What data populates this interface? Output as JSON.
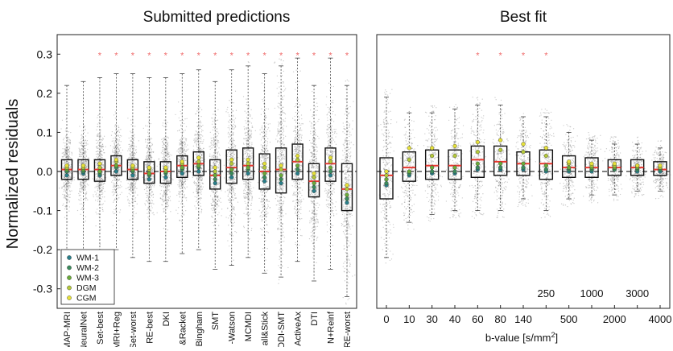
{
  "colors": {
    "median": "#e8372f",
    "outlier_star": "#f06a6a",
    "points": "#6b6b6b",
    "box": "#111111",
    "zero_line": "#333333",
    "markers": {
      "WM-1": "#2a7f8a",
      "WM-2": "#3b8b5c",
      "WM-3": "#6aaa3a",
      "DGM": "#b4c83a",
      "CGM": "#e5e03a"
    }
  },
  "chart_data": [
    {
      "type": "box",
      "title": "Submitted predictions",
      "ylabel": "Normalized residuals",
      "ylim": [
        -0.35,
        0.35
      ],
      "yticks": [
        -0.3,
        -0.2,
        -0.1,
        0.0,
        0.1,
        0.2,
        0.3
      ],
      "yticklabels": [
        "-0.3",
        "-0.2",
        "-0.1",
        "0.0",
        "0.1",
        "0.2",
        "0.3"
      ],
      "zero_line": "dashed",
      "categories": [
        "MAP-MRI",
        "NeuralNet",
        "Set-best",
        "MRI+Reg",
        "Set-worst",
        "RE-best",
        "DKI",
        "&Racket",
        "Bingham",
        "SMT",
        "-Watson",
        "MCMDI",
        "all&Stick",
        "DDI-SMT",
        "ActiveAx",
        "DTI",
        "N+Reinf",
        "RE-worst"
      ],
      "boxes": [
        {
          "q1": -0.02,
          "median": 0.005,
          "q3": 0.03,
          "whisker_low": -0.2,
          "whisker_high": 0.22
        },
        {
          "q1": -0.02,
          "median": 0.005,
          "q3": 0.03,
          "whisker_low": -0.21,
          "whisker_high": 0.23
        },
        {
          "q1": -0.025,
          "median": 0.005,
          "q3": 0.03,
          "whisker_low": -0.22,
          "whisker_high": 0.24
        },
        {
          "q1": -0.01,
          "median": 0.015,
          "q3": 0.04,
          "whisker_low": -0.2,
          "whisker_high": 0.25
        },
        {
          "q1": -0.02,
          "median": 0.005,
          "q3": 0.03,
          "whisker_low": -0.22,
          "whisker_high": 0.25
        },
        {
          "q1": -0.03,
          "median": -0.005,
          "q3": 0.025,
          "whisker_low": -0.23,
          "whisker_high": 0.24
        },
        {
          "q1": -0.03,
          "median": 0.0,
          "q3": 0.025,
          "whisker_low": -0.23,
          "whisker_high": 0.24
        },
        {
          "q1": -0.015,
          "median": 0.015,
          "q3": 0.04,
          "whisker_low": -0.21,
          "whisker_high": 0.25
        },
        {
          "q1": -0.01,
          "median": 0.02,
          "q3": 0.05,
          "whisker_low": -0.2,
          "whisker_high": 0.26
        },
        {
          "q1": -0.045,
          "median": -0.01,
          "q3": 0.03,
          "whisker_low": -0.25,
          "whisker_high": 0.23
        },
        {
          "q1": -0.03,
          "median": 0.01,
          "q3": 0.055,
          "whisker_low": -0.24,
          "whisker_high": 0.26
        },
        {
          "q1": -0.02,
          "median": 0.015,
          "q3": 0.06,
          "whisker_low": -0.22,
          "whisker_high": 0.27
        },
        {
          "q1": -0.045,
          "median": 0.0,
          "q3": 0.045,
          "whisker_low": -0.26,
          "whisker_high": 0.25
        },
        {
          "q1": -0.055,
          "median": 0.005,
          "q3": 0.06,
          "whisker_low": -0.27,
          "whisker_high": 0.27
        },
        {
          "q1": -0.02,
          "median": 0.025,
          "q3": 0.07,
          "whisker_low": -0.23,
          "whisker_high": 0.29
        },
        {
          "q1": -0.065,
          "median": -0.025,
          "q3": 0.02,
          "whisker_low": -0.28,
          "whisker_high": 0.22
        },
        {
          "q1": -0.025,
          "median": 0.02,
          "q3": 0.06,
          "whisker_low": -0.25,
          "whisker_high": 0.29
        },
        {
          "q1": -0.1,
          "median": -0.045,
          "q3": 0.02,
          "whisker_low": -0.32,
          "whisker_high": 0.22
        }
      ],
      "outlier_stars": [
        2,
        3,
        4,
        5,
        6,
        7,
        8,
        9,
        10,
        11,
        12,
        13,
        14,
        15,
        16,
        17
      ],
      "outlier_star_value": 0.3,
      "tissue_means": {
        "WM-1": [
          -0.01,
          -0.005,
          -0.01,
          0.0,
          -0.01,
          -0.02,
          -0.015,
          -0.005,
          0.0,
          -0.03,
          -0.015,
          -0.005,
          -0.025,
          -0.03,
          -0.005,
          -0.05,
          -0.01,
          -0.08
        ],
        "WM-2": [
          0.0,
          0.0,
          -0.005,
          0.01,
          0.0,
          -0.01,
          -0.005,
          0.005,
          0.01,
          -0.02,
          -0.005,
          0.005,
          -0.015,
          -0.02,
          0.005,
          -0.04,
          0.0,
          -0.07
        ],
        "WM-3": [
          0.005,
          0.005,
          0.0,
          0.015,
          0.005,
          -0.005,
          0.0,
          0.01,
          0.015,
          -0.01,
          0.005,
          0.01,
          -0.005,
          -0.01,
          0.015,
          -0.03,
          0.01,
          -0.06
        ],
        "DGM": [
          0.01,
          0.01,
          0.01,
          0.025,
          0.01,
          0.005,
          0.005,
          0.02,
          0.025,
          0.0,
          0.02,
          0.02,
          0.01,
          0.005,
          0.03,
          -0.015,
          0.025,
          -0.045
        ],
        "CGM": [
          0.015,
          0.015,
          0.02,
          0.03,
          0.015,
          0.01,
          0.01,
          0.025,
          0.035,
          0.01,
          0.03,
          0.03,
          0.02,
          0.015,
          0.04,
          -0.005,
          0.035,
          -0.035
        ]
      },
      "legend": {
        "placement": "bottom-left",
        "entries": [
          "WM-1",
          "WM-2",
          "WM-3",
          "DGM",
          "CGM"
        ]
      }
    },
    {
      "type": "box",
      "title": "Best fit",
      "xlabel_prefix": "b-value [s/mm",
      "xlabel_superscript": "2",
      "xlabel_suffix": "]",
      "ylim": [
        -0.35,
        0.35
      ],
      "zero_line": "dashed",
      "categories": [
        "0",
        "10",
        "30",
        "40",
        "60",
        "80",
        "140",
        "250",
        "500",
        "1000",
        "2000",
        "3000",
        "4000"
      ],
      "boxes": [
        {
          "q1": -0.07,
          "median": -0.01,
          "q3": 0.035,
          "whisker_low": -0.22,
          "whisker_high": 0.19
        },
        {
          "q1": -0.025,
          "median": 0.01,
          "q3": 0.05,
          "whisker_low": -0.13,
          "whisker_high": 0.15
        },
        {
          "q1": -0.02,
          "median": 0.015,
          "q3": 0.055,
          "whisker_low": -0.11,
          "whisker_high": 0.15
        },
        {
          "q1": -0.02,
          "median": 0.015,
          "q3": 0.055,
          "whisker_low": -0.1,
          "whisker_high": 0.16
        },
        {
          "q1": -0.015,
          "median": 0.03,
          "q3": 0.065,
          "whisker_low": -0.1,
          "whisker_high": 0.17
        },
        {
          "q1": -0.01,
          "median": 0.025,
          "q3": 0.065,
          "whisker_low": -0.1,
          "whisker_high": 0.17
        },
        {
          "q1": -0.01,
          "median": 0.02,
          "q3": 0.05,
          "whisker_low": -0.07,
          "whisker_high": 0.14
        },
        {
          "q1": -0.02,
          "median": 0.02,
          "q3": 0.055,
          "whisker_low": -0.1,
          "whisker_high": 0.14
        },
        {
          "q1": -0.015,
          "median": 0.01,
          "q3": 0.04,
          "whisker_low": -0.07,
          "whisker_high": 0.1
        },
        {
          "q1": -0.015,
          "median": 0.01,
          "q3": 0.035,
          "whisker_low": -0.06,
          "whisker_high": 0.08
        },
        {
          "q1": -0.01,
          "median": 0.01,
          "q3": 0.03,
          "whisker_low": -0.06,
          "whisker_high": 0.07
        },
        {
          "q1": -0.01,
          "median": 0.01,
          "q3": 0.03,
          "whisker_low": -0.05,
          "whisker_high": 0.07
        },
        {
          "q1": -0.01,
          "median": 0.005,
          "q3": 0.025,
          "whisker_low": -0.05,
          "whisker_high": 0.06
        }
      ],
      "outlier_stars": [
        4,
        5,
        6,
        7
      ],
      "outlier_star_value": 0.3,
      "tissue_means": {
        "WM-1": [
          -0.035,
          -0.01,
          -0.005,
          -0.005,
          0.005,
          0.005,
          0.005,
          0.0,
          0.0,
          0.0,
          0.005,
          0.0,
          0.0
        ],
        "WM-2": [
          -0.03,
          -0.005,
          0.0,
          0.0,
          0.01,
          0.01,
          0.01,
          0.005,
          0.005,
          0.005,
          0.005,
          0.005,
          0.005
        ],
        "WM-3": [
          -0.02,
          0.0,
          0.01,
          0.01,
          0.02,
          0.02,
          0.02,
          0.015,
          0.01,
          0.01,
          0.01,
          0.01,
          0.01
        ],
        "DGM": [
          -0.01,
          0.03,
          0.04,
          0.04,
          0.05,
          0.055,
          0.05,
          0.04,
          0.02,
          0.015,
          0.015,
          0.015,
          0.01
        ],
        "CGM": [
          0.0,
          0.06,
          0.06,
          0.065,
          0.075,
          0.08,
          0.07,
          0.06,
          0.025,
          0.02,
          0.02,
          0.015,
          0.015
        ]
      },
      "shell_annotations": [
        {
          "category": "250",
          "label": "250"
        },
        {
          "category": "1000",
          "label": "1000"
        },
        {
          "category": "3000",
          "label": "3000"
        }
      ]
    }
  ]
}
